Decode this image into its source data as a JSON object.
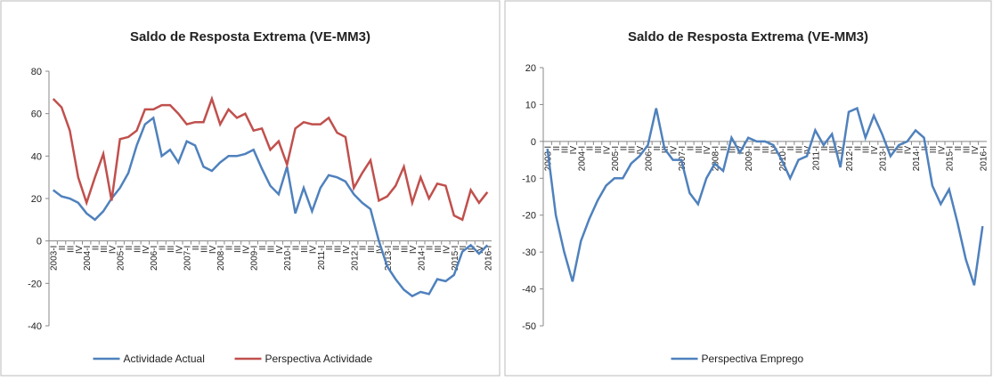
{
  "chart_data": [
    {
      "type": "line",
      "title": "Saldo de Resposta Extrema (VE-MM3)",
      "categories": [
        "2003-I",
        "II",
        "III",
        "IV",
        "2004-I",
        "II",
        "III",
        "IV",
        "2005-I",
        "II",
        "III",
        "IV",
        "2006-I",
        "II",
        "III",
        "IV",
        "2007-I",
        "II",
        "III",
        "IV",
        "2008-I",
        "II",
        "III",
        "IV",
        "2009-I",
        "II",
        "III",
        "IV",
        "2010-I",
        "II",
        "III",
        "IV",
        "2011-I",
        "II",
        "III",
        "IV",
        "2012-I",
        "II",
        "III",
        "IV",
        "2013-I",
        "II",
        "III",
        "IV",
        "2014-I",
        "II",
        "III",
        "IV",
        "2015-I",
        "II",
        "III",
        "IV",
        "2016-I"
      ],
      "series": [
        {
          "name": "Actividade Actual",
          "color": "#4f81bd",
          "values": [
            24,
            21,
            20,
            18,
            13,
            10,
            14,
            20,
            25,
            32,
            45,
            55,
            58,
            40,
            43,
            37,
            47,
            45,
            35,
            33,
            37,
            40,
            40,
            41,
            43,
            34,
            26,
            22,
            35,
            13,
            25,
            14,
            25,
            31,
            30,
            28,
            22,
            18,
            15,
            0,
            -12,
            -18,
            -23,
            -26,
            -24,
            -25,
            -18,
            -19,
            -16,
            -5,
            -2,
            -6,
            -2
          ]
        },
        {
          "name": "Perspectiva Actividade",
          "color": "#c0504d",
          "values": [
            67,
            63,
            52,
            30,
            18,
            30,
            41,
            19,
            48,
            49,
            52,
            62,
            62,
            64,
            64,
            60,
            55,
            56,
            56,
            67,
            55,
            62,
            58,
            60,
            52,
            53,
            43,
            47,
            36,
            53,
            56,
            55,
            55,
            58,
            51,
            49,
            25,
            32,
            38,
            19,
            21,
            26,
            35,
            18,
            30,
            20,
            27,
            26,
            12,
            10,
            24,
            18,
            23
          ]
        }
      ],
      "ylim": [
        -40,
        80
      ],
      "yticks": [
        -40,
        -20,
        0,
        20,
        40,
        60,
        80
      ]
    },
    {
      "type": "line",
      "title": "Saldo de Resposta Extrema (VE-MM3)",
      "categories": [
        "2003-I",
        "II",
        "III",
        "IV",
        "2004-I",
        "II",
        "III",
        "IV",
        "2005-I",
        "II",
        "III",
        "IV",
        "2006-I",
        "II",
        "III",
        "IV",
        "2007-I",
        "II",
        "III",
        "IV",
        "2008-I",
        "II",
        "III",
        "IV",
        "2009-I",
        "II",
        "III",
        "IV",
        "2010-I",
        "II",
        "III",
        "IV",
        "2011-I",
        "II",
        "III",
        "IV",
        "2012-I",
        "II",
        "III",
        "IV",
        "2013-I",
        "II",
        "III",
        "IV",
        "2014-I",
        "II",
        "III",
        "IV",
        "2015-I",
        "II",
        "III",
        "IV",
        "2016-I"
      ],
      "series": [
        {
          "name": "Perspectiva Emprego",
          "color": "#4f81bd",
          "values": [
            -2,
            -20,
            -30,
            -38,
            -27,
            -21,
            -16,
            -12,
            -10,
            -10,
            -6,
            -4,
            -1,
            9,
            -2,
            -5,
            -5,
            -14,
            -17,
            -10,
            -6,
            -8,
            1,
            -3,
            1,
            0,
            0,
            -1,
            -5,
            -10,
            -5,
            -4,
            3,
            -1,
            2,
            -7,
            8,
            9,
            1,
            7,
            2,
            -4,
            -1,
            0,
            3,
            1,
            -12,
            -17,
            -13,
            -22,
            -32,
            -39,
            -23
          ]
        }
      ],
      "ylim": [
        -50,
        20
      ],
      "yticks": [
        -50,
        -40,
        -30,
        -20,
        -10,
        0,
        10,
        20
      ]
    }
  ]
}
